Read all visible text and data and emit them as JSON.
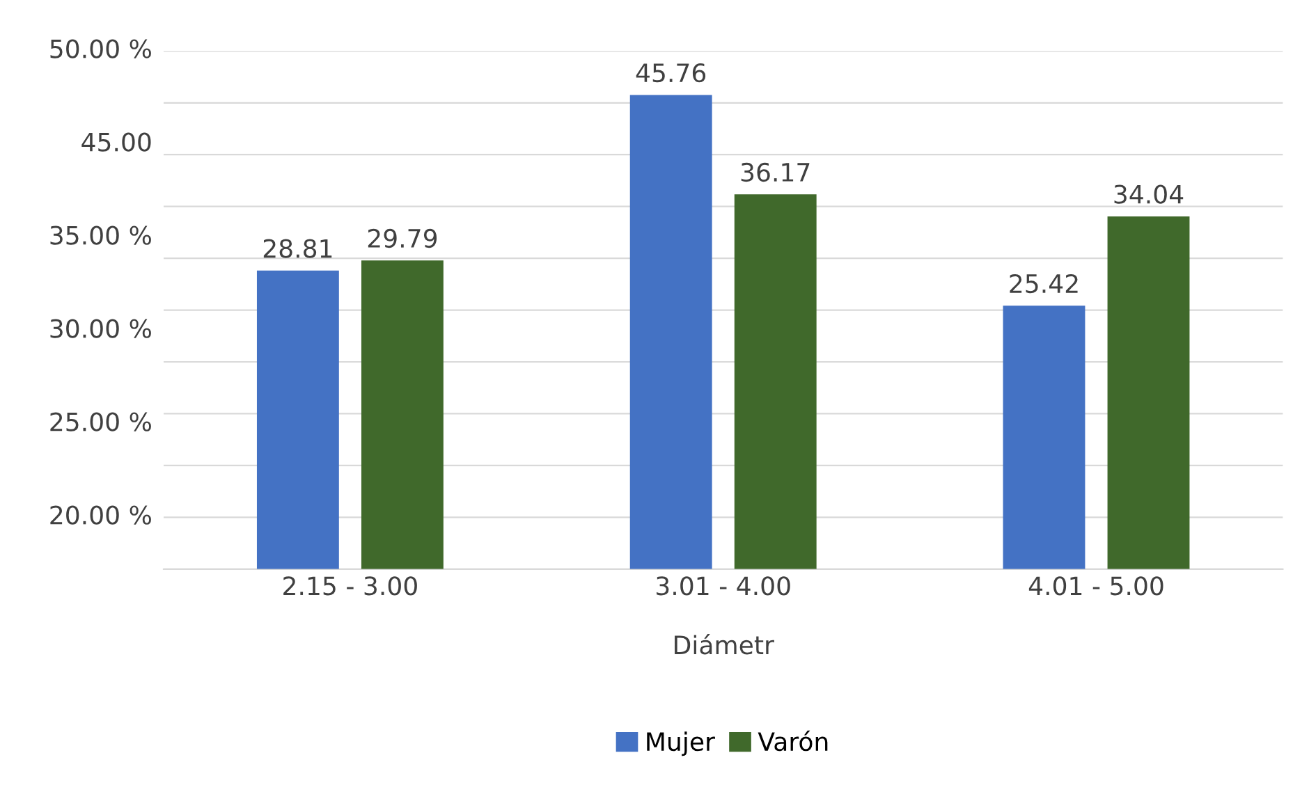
{
  "chart_data": {
    "type": "bar",
    "xlabel": "Diámetr",
    "categories": [
      "2.15 - 3.00",
      "3.01 - 4.00",
      "4.01 - 5.00"
    ],
    "series": [
      {
        "name": "Mujer",
        "color": "#4472c4",
        "values": [
          28.81,
          45.76,
          25.42
        ]
      },
      {
        "name": "Varón",
        "color": "#40692b",
        "values": [
          29.79,
          36.17,
          34.04
        ]
      }
    ],
    "ylim": [
      0,
      50
    ],
    "yticks": [
      {
        "value": 0,
        "label": null
      },
      {
        "value": 5,
        "label": null
      },
      {
        "value": 10,
        "label": null
      },
      {
        "value": 15,
        "label": null
      },
      {
        "value": 20,
        "label": null
      },
      {
        "value": 25,
        "label": null
      },
      {
        "value": 30,
        "label": null
      },
      {
        "value": 35,
        "label": null
      },
      {
        "value": 40,
        "label": null
      },
      {
        "value": 45,
        "label": null
      },
      {
        "value": 50,
        "label": null
      }
    ],
    "annotations": [
      "50.00 %",
      "45.00",
      "35.00 %",
      "30.00 %",
      "25.00 %",
      "20.00 %"
    ],
    "grid": "y",
    "legend": "bottom",
    "data_labels": true
  }
}
